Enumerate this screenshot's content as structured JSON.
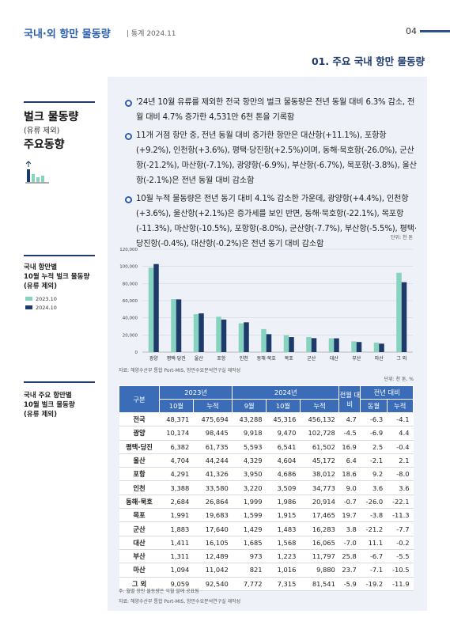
{
  "header": {
    "title": "국내·외 항만 물동량",
    "subtitle": "| 통계 2024.11",
    "page": "04"
  },
  "section_title": "01. 주요 국내 항만 물동량",
  "sidebar": {
    "heading": "벌크 물동량",
    "heading_sub": "(유류 제외)",
    "heading2": "주요동향",
    "chart_label": [
      "국내 항만별",
      "10월 누적 벌크 물동량",
      "(유류 제외)"
    ],
    "table_label": [
      "국내 주요 항만별",
      "10월 벌크 물동량",
      "(유류 제외)"
    ]
  },
  "bullets": [
    "'24년 10월 유류를 제외한 전국 항만의 벌크 물동량은 전년 동월 대비 6.3% 감소, 전월 대비 4.7% 증가한 4,531만 6천 톤을 기록함",
    "11개 거점 항만 중, 전년 동월 대비 증가한 항만은 대산항(+11.1%), 포항항(+9.2%), 인천항(+3.6%), 평택·당진항(+2.5%)이며, 동해·묵호항(-26.0%), 군산항(-21.2%), 마산항(-7.1%), 광양항(-6.9%), 부산항(-6.7%), 목포항(-3.8%), 울산항(-2.1%)은 전년 동월 대비 감소함",
    "10월 누적 물동량은 전년 동기 대비 4.1% 감소한 가운데, 광양항(+4.4%), 인천항(+3.6%), 울산항(+2.1%)은 증가세를 보인 반면, 동해·묵호항(-22.1%), 목포항(-11.3%), 마산항(-10.5%), 포항항(-8.0%), 군산항(-7.7%), 부산항(-5.5%), 평택·당진항(-0.4%), 대산항(-0.2%)은 전년 동기 대비 감소함"
  ],
  "chart_data": {
    "type": "bar",
    "unit": "단위: 천 톤",
    "categories": [
      "광양",
      "평택·당진",
      "울산",
      "포항",
      "인천",
      "동해·묵호",
      "목포",
      "군산",
      "대산",
      "부산",
      "마산",
      "그 외"
    ],
    "series": [
      {
        "name": "2023.10",
        "color": "#86d4c0",
        "values": [
          98445,
          61735,
          44244,
          41326,
          33580,
          26864,
          19683,
          17640,
          16105,
          12489,
          11042,
          92540
        ]
      },
      {
        "name": "2024.10",
        "color": "#1d3a6b",
        "values": [
          102728,
          61502,
          45172,
          38012,
          34773,
          20914,
          17465,
          16283,
          16065,
          11797,
          9880,
          81541
        ]
      }
    ],
    "ylim": [
      0,
      120000
    ],
    "yticks": [
      0,
      {
        "value": 20000,
        "label": "20,000"
      },
      {
        "value": 40000,
        "label": "40,000"
      },
      {
        "value": 60000,
        "label": "60,000"
      },
      {
        "value": 80000,
        "label": "80,000"
      },
      {
        "value": 100000,
        "label": "100,000"
      },
      {
        "value": 120000,
        "label": "120,000"
      }
    ],
    "grid": true,
    "source": "자료: 해양수산부 통합 Port-MIS, 항만수요분석연구실 재작성"
  },
  "table": {
    "unit": "단위: 천 톤, %",
    "header": {
      "group": "구분",
      "y2023": "2023년",
      "y2024": "2024년",
      "mom": "전월 대비",
      "yoy": "전년 대비",
      "sub": [
        "10월",
        "누적",
        "9월",
        "10월",
        "누적",
        "동월",
        "누적"
      ]
    },
    "rows": [
      [
        "전국",
        "48,371",
        "475,694",
        "43,288",
        "45,316",
        "456,132",
        "4.7",
        "-6.3",
        "-4.1"
      ],
      [
        "광양",
        "10,174",
        "98,445",
        "9,918",
        "9,470",
        "102,728",
        "-4.5",
        "-6.9",
        "4.4"
      ],
      [
        "평택·당진",
        "6,382",
        "61,735",
        "5,593",
        "6,541",
        "61,502",
        "16.9",
        "2.5",
        "-0.4"
      ],
      [
        "울산",
        "4,704",
        "44,244",
        "4,329",
        "4,604",
        "45,172",
        "6.4",
        "-2.1",
        "2.1"
      ],
      [
        "포항",
        "4,291",
        "41,326",
        "3,950",
        "4,686",
        "38,012",
        "18.6",
        "9.2",
        "-8.0"
      ],
      [
        "인천",
        "3,388",
        "33,580",
        "3,220",
        "3,509",
        "34,773",
        "9.0",
        "3.6",
        "3.6"
      ],
      [
        "동해·묵호",
        "2,684",
        "26,864",
        "1,999",
        "1,986",
        "20,914",
        "-0.7",
        "-26.0",
        "-22.1"
      ],
      [
        "목포",
        "1,991",
        "19,683",
        "1,599",
        "1,915",
        "17,465",
        "19.7",
        "-3.8",
        "-11.3"
      ],
      [
        "군산",
        "1,883",
        "17,640",
        "1,429",
        "1,483",
        "16,283",
        "3.8",
        "-21.2",
        "-7.7"
      ],
      [
        "대산",
        "1,411",
        "16,105",
        "1,685",
        "1,568",
        "16,065",
        "-7.0",
        "11.1",
        "-0.2"
      ],
      [
        "부산",
        "1,311",
        "12,489",
        "973",
        "1,223",
        "11,797",
        "25.8",
        "-6.7",
        "-5.5"
      ],
      [
        "마산",
        "1,094",
        "11,042",
        "821",
        "1,016",
        "9,880",
        "23.7",
        "-7.1",
        "-10.5"
      ],
      [
        "그 외",
        "9,059",
        "92,540",
        "7,772",
        "7,315",
        "81,541",
        "-5.9",
        "-19.2",
        "-11.9"
      ]
    ],
    "notes": [
      "주: 월별 항만 물동량은 익월 말에 공표됨",
      "자료: 해양수산부 통합 Port-MIS, 항만수요분석연구실 재작성"
    ]
  }
}
